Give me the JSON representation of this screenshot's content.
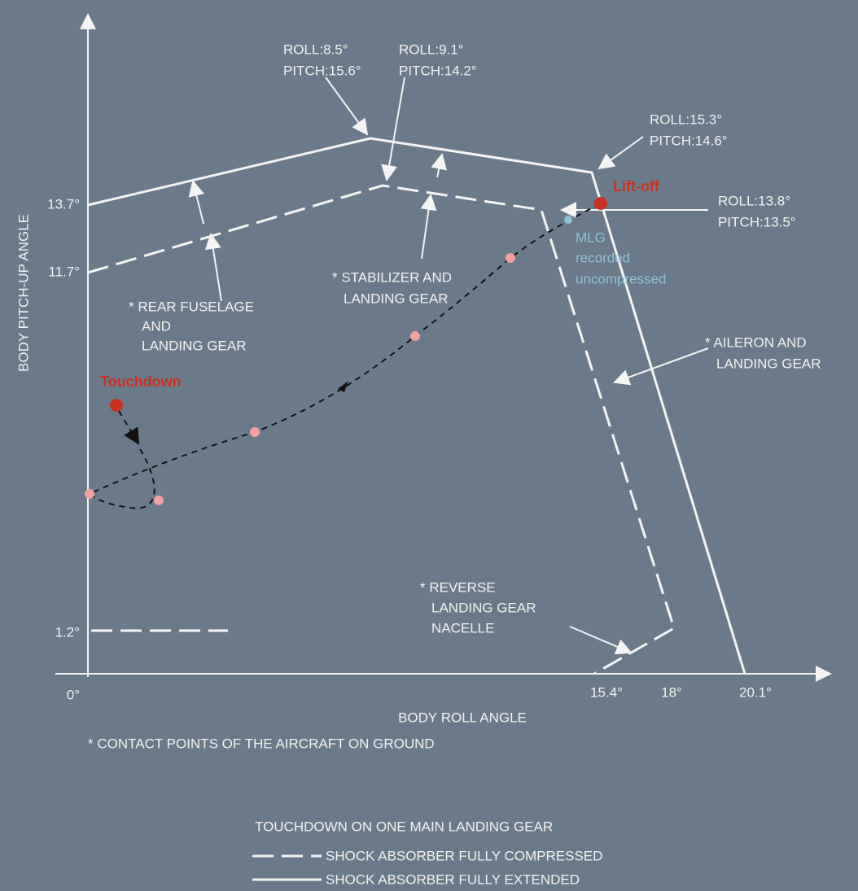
{
  "y_axis_label": "BODY PITCH-UP ANGLE",
  "x_axis_label": "BODY ROLL ANGLE",
  "y_ticks": [
    "13.7°",
    "11.7°",
    "1.2°",
    "0°"
  ],
  "x_ticks": [
    "15.4°",
    "18°",
    "20.1°"
  ],
  "annotations": [
    [
      "ROLL:8.5°",
      "PITCH:15.6°"
    ],
    [
      "ROLL:9.1°",
      "PITCH:14.2°"
    ],
    [
      "ROLL:15.3°",
      "PITCH:14.6°"
    ],
    [
      "ROLL:13.8°",
      "PITCH:13.5°"
    ]
  ],
  "events": {
    "lift_off": "Lift-off",
    "touchdown": "Touchdown",
    "mlg": [
      "MLG",
      "recorded",
      "uncompressed"
    ]
  },
  "contact_points": {
    "stabilizer": [
      "* STABILIZER AND",
      "LANDING GEAR"
    ],
    "rear_fuselage": [
      "* REAR FUSELAGE",
      "AND",
      "LANDING GEAR"
    ],
    "aileron": [
      "* AILERON AND",
      "LANDING GEAR"
    ],
    "reverse": [
      "* REVERSE",
      "LANDING GEAR",
      "NACELLE"
    ]
  },
  "footnote": "* CONTACT POINTS OF THE AIRCRAFT ON GROUND",
  "legend": {
    "title": "TOUCHDOWN ON ONE MAIN LANDING GEAR",
    "items": [
      "SHOCK ABSORBER FULLY COMPRESSED",
      "SHOCK ABSORBER FULLY EXTENDED"
    ]
  }
}
